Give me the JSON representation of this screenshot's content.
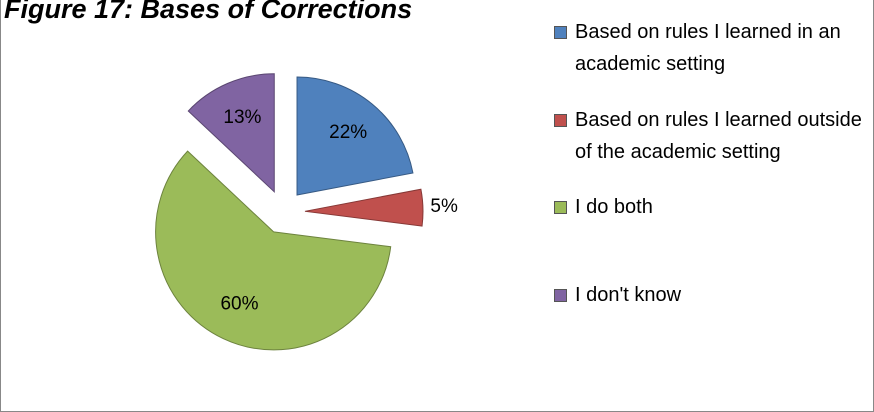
{
  "chart_data": {
    "type": "pie",
    "title": "Figure 17: Bases of Corrections",
    "categories": [
      "Based on rules I learned in an academic setting",
      "Based on rules I learned outside of the academic setting",
      "I do both",
      "I don't know"
    ],
    "values": [
      22,
      5,
      60,
      13
    ],
    "value_labels": [
      "22%",
      "5%",
      "60%",
      "13%"
    ],
    "colors": [
      "#4f81bd",
      "#c0504d",
      "#9bbb59",
      "#8064a2"
    ],
    "legend": "right"
  }
}
